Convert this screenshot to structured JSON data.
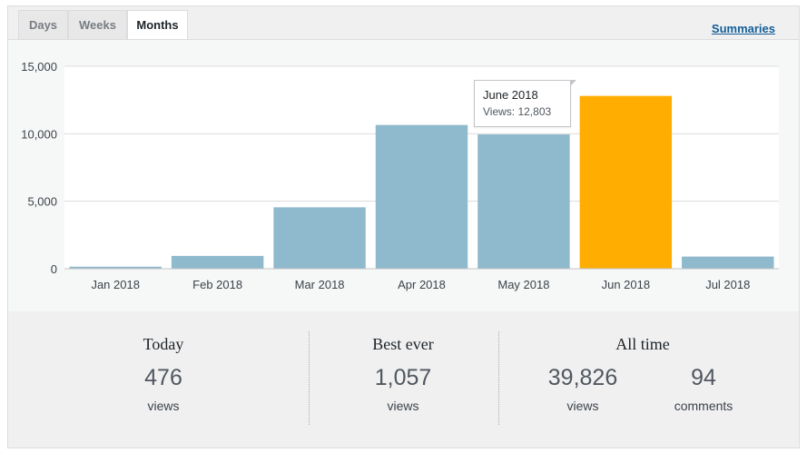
{
  "tabs": [
    "Days",
    "Weeks",
    "Months"
  ],
  "active_tab": "Months",
  "summaries_link": "Summaries",
  "tooltip": {
    "title": "June 2018",
    "views": "Views: 12,803"
  },
  "colors": {
    "bar": "#8fb9cc",
    "bar_highlight": "#ffad00",
    "grid": "#dcdcde"
  },
  "chart_data": {
    "type": "bar",
    "categories": [
      "Jan 2018",
      "Feb 2018",
      "Mar 2018",
      "Apr 2018",
      "May 2018",
      "Jun 2018",
      "Jul 2018"
    ],
    "values": [
      150,
      950,
      4550,
      10650,
      9950,
      12803,
      900
    ],
    "highlight_index": 5,
    "ylim": [
      0,
      15000
    ],
    "yticks": [
      0,
      5000,
      10000,
      15000
    ],
    "ytick_labels": [
      "0",
      "5,000",
      "10,000",
      "15,000"
    ],
    "grid": true
  },
  "stats": {
    "today": {
      "title": "Today",
      "value": "476",
      "unit": "views"
    },
    "best_ever": {
      "title": "Best ever",
      "value": "1,057",
      "unit": "views"
    },
    "all_time": {
      "title": "All time",
      "views_value": "39,826",
      "views_unit": "views",
      "comments_value": "94",
      "comments_unit": "comments"
    }
  }
}
